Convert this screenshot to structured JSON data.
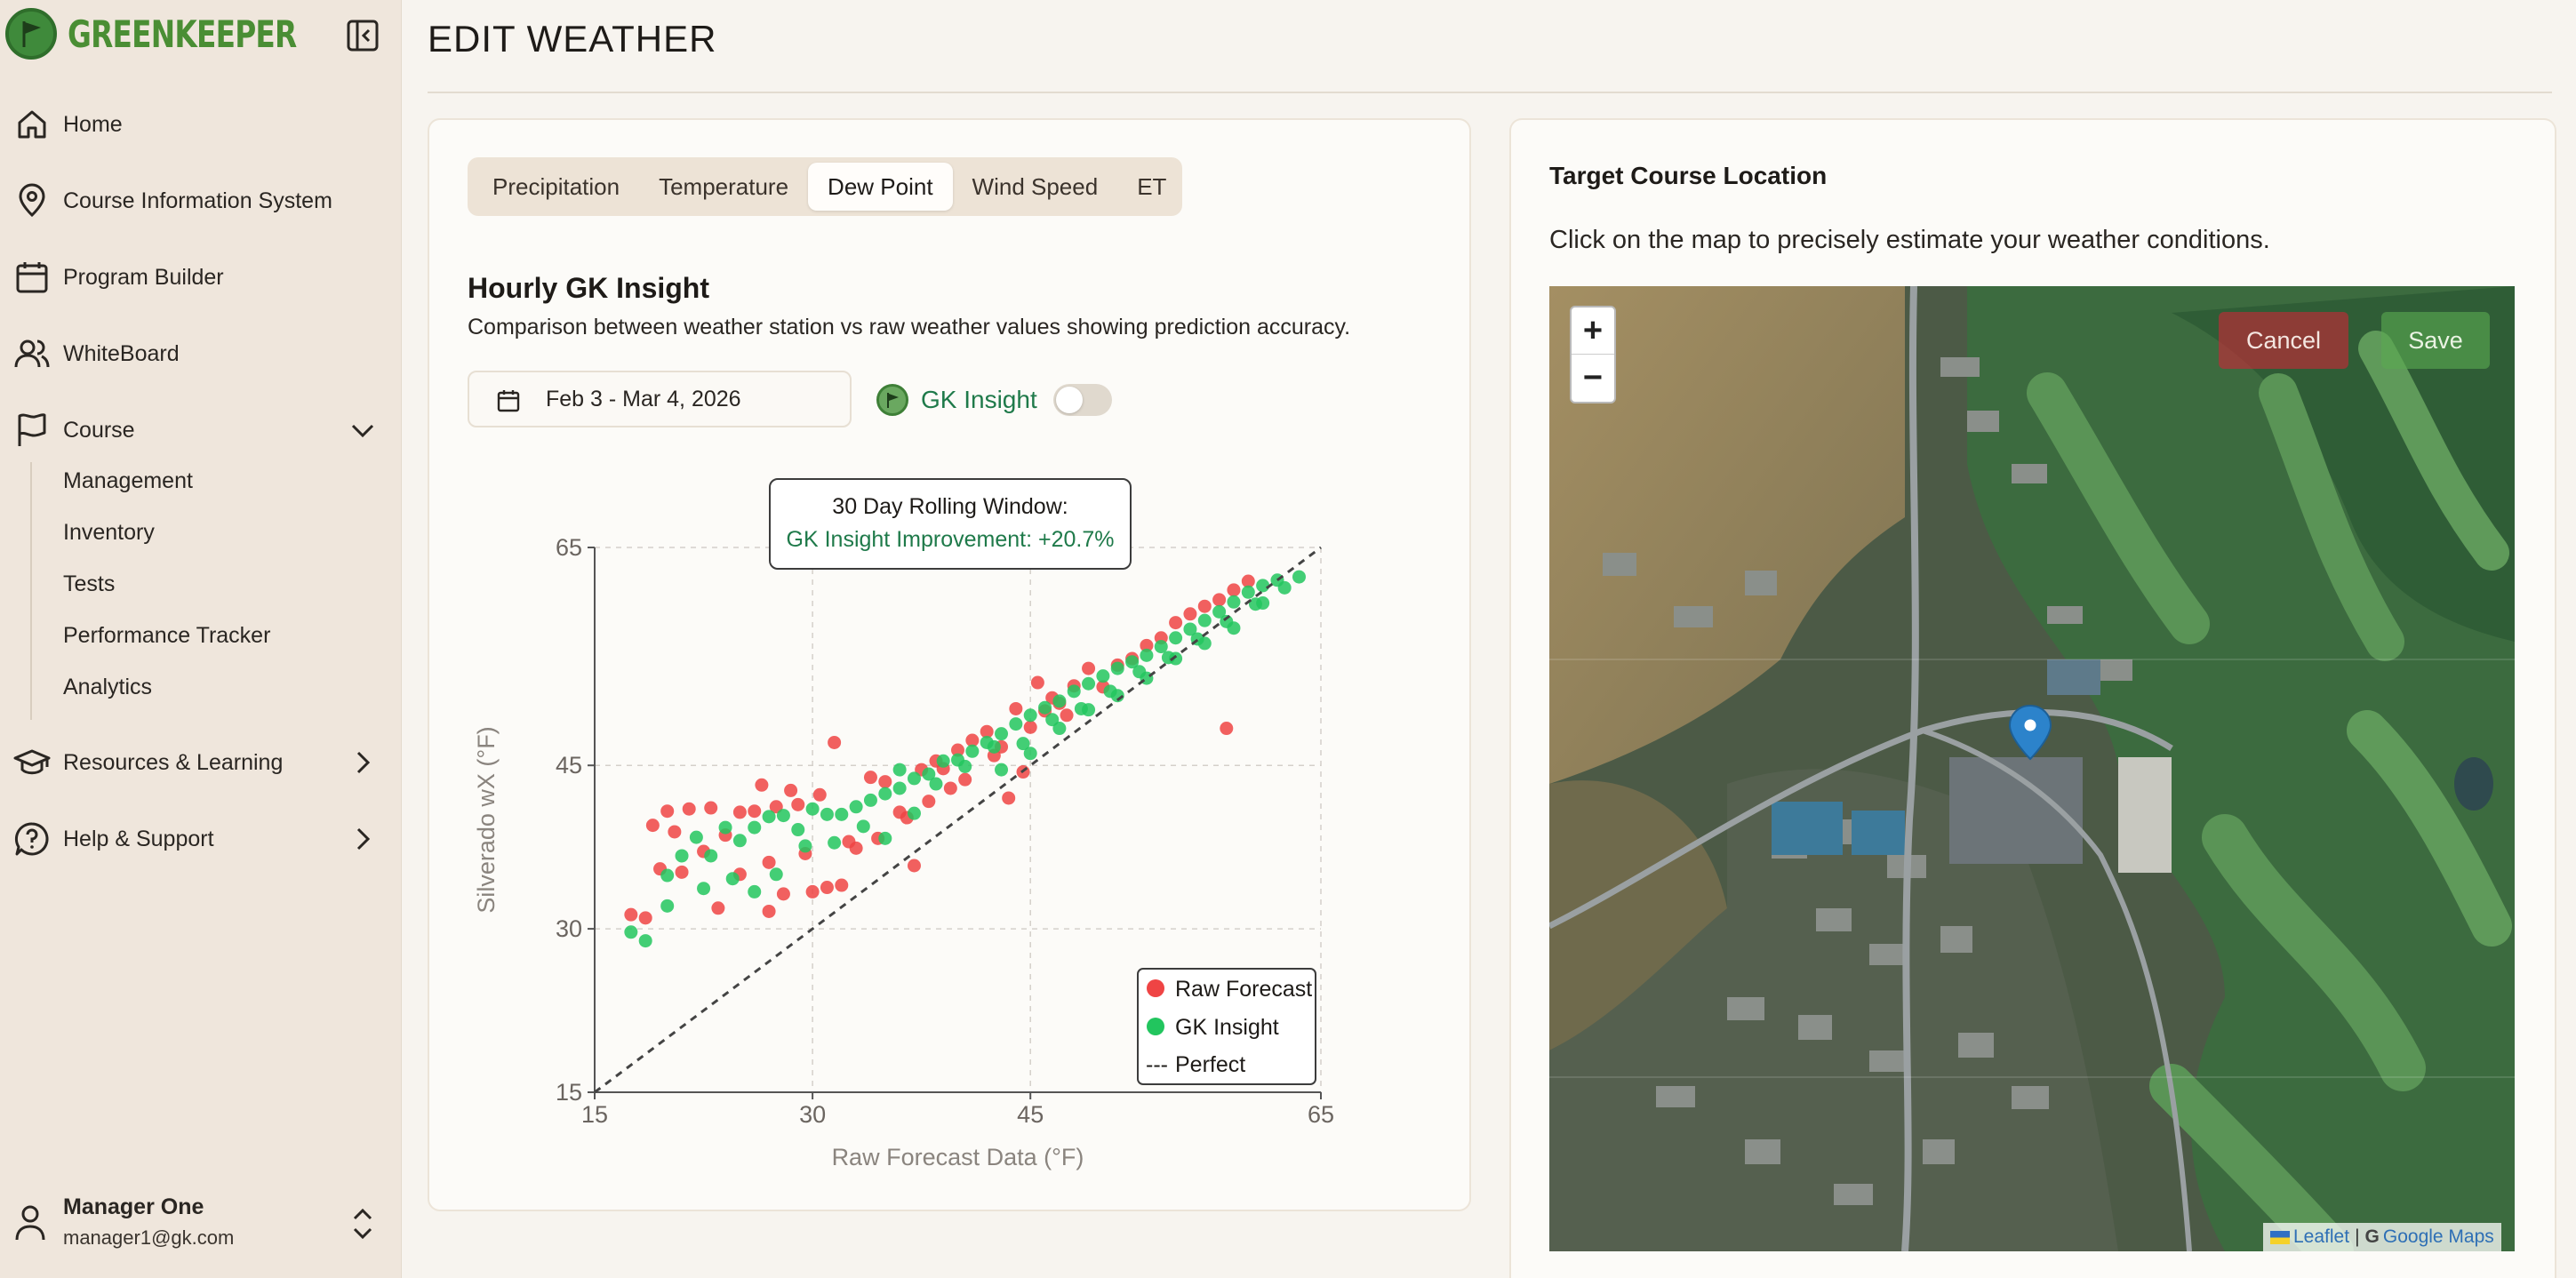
{
  "brand": {
    "name": "GREENKEEPER"
  },
  "sidebar": {
    "items": [
      {
        "label": "Home",
        "icon": "home-icon"
      },
      {
        "label": "Course Information System",
        "icon": "map-pin-icon"
      },
      {
        "label": "Program Builder",
        "icon": "calendar-icon"
      },
      {
        "label": "WhiteBoard",
        "icon": "users-icon"
      },
      {
        "label": "Course",
        "icon": "flag-icon",
        "expanded": true
      },
      {
        "label": "Resources & Learning",
        "icon": "graduation-cap-icon"
      },
      {
        "label": "Help & Support",
        "icon": "help-circle-icon"
      }
    ],
    "course_sub": [
      "Management",
      "Inventory",
      "Tests",
      "Performance Tracker",
      "Analytics"
    ],
    "user": {
      "name": "Manager One",
      "email": "manager1@gk.com"
    }
  },
  "header": {
    "title": "EDIT WEATHER"
  },
  "tabs": [
    {
      "label": "Precipitation",
      "active": false
    },
    {
      "label": "Temperature",
      "active": false
    },
    {
      "label": "Dew Point",
      "active": true
    },
    {
      "label": "Wind Speed",
      "active": false
    },
    {
      "label": "ET",
      "active": false
    }
  ],
  "insight": {
    "title": "Hourly GK Insight",
    "description": "Comparison between weather station vs raw weather values showing prediction accuracy.",
    "date_range": "Feb 3 - Mar 4, 2026",
    "toggle_label": "GK Insight",
    "toggle_on": false
  },
  "tooltip": {
    "line1": "30 Day Rolling Window:",
    "line2": "GK Insight Improvement: +20.7%"
  },
  "chart_data": {
    "type": "scatter",
    "title": "",
    "xlabel": "Raw Forecast Data (°F)",
    "ylabel": "Silverado wX (°F)",
    "xlim": [
      15,
      65
    ],
    "ylim": [
      15,
      65
    ],
    "xticks": [
      "15",
      "30",
      "45",
      "65"
    ],
    "yticks": [
      "15",
      "30",
      "45",
      "65"
    ],
    "tick_values": [
      15,
      30,
      45,
      65
    ],
    "grid": true,
    "legend_position": "bottom-right",
    "colors": {
      "raw": "#ef4444",
      "gk": "#22c55e",
      "perfect": "#444444"
    },
    "series": [
      {
        "name": "Raw Forecast",
        "points": [
          [
            17.5,
            31.3
          ],
          [
            18.5,
            31.0
          ],
          [
            19.0,
            39.5
          ],
          [
            20.5,
            38.9
          ],
          [
            19.5,
            35.5
          ],
          [
            20.0,
            40.8
          ],
          [
            21.5,
            41.0
          ],
          [
            23,
            41.1
          ],
          [
            25,
            40.7
          ],
          [
            26,
            40.8
          ],
          [
            27.5,
            41.2
          ],
          [
            29,
            41.4
          ],
          [
            30.5,
            42.3
          ],
          [
            26.5,
            43.2
          ],
          [
            28.5,
            42.7
          ],
          [
            31.5,
            47.1
          ],
          [
            24,
            38.6
          ],
          [
            22.5,
            37.1
          ],
          [
            21,
            35.2
          ],
          [
            25,
            35.0
          ],
          [
            27,
            36.1
          ],
          [
            28,
            33.2
          ],
          [
            30,
            33.4
          ],
          [
            32,
            34.0
          ],
          [
            31,
            33.8
          ],
          [
            33,
            37.4
          ],
          [
            34.5,
            38.3
          ],
          [
            36,
            40.7
          ],
          [
            38,
            41.7
          ],
          [
            35,
            43.5
          ],
          [
            37.5,
            44.6
          ],
          [
            39,
            44.7
          ],
          [
            40,
            46.4
          ],
          [
            41,
            47.3
          ],
          [
            42,
            48.1
          ],
          [
            43,
            46.7
          ],
          [
            44,
            50.2
          ],
          [
            45,
            48.5
          ],
          [
            46,
            50.0
          ],
          [
            45.5,
            52.6
          ],
          [
            46.5,
            51.2
          ],
          [
            47,
            50.7
          ],
          [
            48,
            52.3
          ],
          [
            49,
            53.9
          ],
          [
            50,
            52.2
          ],
          [
            51,
            54.2
          ],
          [
            52,
            54.8
          ],
          [
            53,
            56.0
          ],
          [
            54,
            56.7
          ],
          [
            55,
            58.1
          ],
          [
            56,
            58.9
          ],
          [
            57,
            59.6
          ],
          [
            58,
            60.2
          ],
          [
            59,
            61.1
          ],
          [
            60,
            61.9
          ],
          [
            58.5,
            48.4
          ],
          [
            43.5,
            42.0
          ],
          [
            44.5,
            44.4
          ],
          [
            40.5,
            43.7
          ],
          [
            36.5,
            40.2
          ],
          [
            27,
            31.6
          ],
          [
            23.5,
            31.9
          ],
          [
            29.5,
            36.9
          ],
          [
            34,
            43.9
          ],
          [
            38.5,
            45.4
          ],
          [
            47.5,
            49.6
          ],
          [
            42.5,
            45.9
          ],
          [
            37,
            35.8
          ],
          [
            32.5,
            38.0
          ],
          [
            39.5,
            42.9
          ]
        ]
      },
      {
        "name": "GK Insight",
        "points": [
          [
            17.5,
            29.7
          ],
          [
            18.5,
            28.9
          ],
          [
            20,
            34.9
          ],
          [
            21,
            36.7
          ],
          [
            22,
            38.4
          ],
          [
            23,
            36.7
          ],
          [
            24,
            39.3
          ],
          [
            25,
            38.1
          ],
          [
            26,
            39.3
          ],
          [
            27,
            40.3
          ],
          [
            28,
            40.4
          ],
          [
            29,
            39.1
          ],
          [
            30,
            41.0
          ],
          [
            31,
            40.5
          ],
          [
            32,
            40.5
          ],
          [
            33,
            41.2
          ],
          [
            34,
            41.8
          ],
          [
            35,
            42.4
          ],
          [
            36,
            42.9
          ],
          [
            37,
            43.8
          ],
          [
            38,
            44.2
          ],
          [
            39,
            45.4
          ],
          [
            40,
            45.5
          ],
          [
            41,
            46.3
          ],
          [
            42,
            47.1
          ],
          [
            43,
            47.9
          ],
          [
            44,
            48.8
          ],
          [
            45,
            49.6
          ],
          [
            46,
            50.3
          ],
          [
            47,
            50.9
          ],
          [
            48,
            51.8
          ],
          [
            49,
            52.5
          ],
          [
            50,
            53.2
          ],
          [
            51,
            53.9
          ],
          [
            52,
            54.5
          ],
          [
            53,
            55.1
          ],
          [
            54,
            55.9
          ],
          [
            55,
            56.7
          ],
          [
            56,
            57.5
          ],
          [
            57,
            58.3
          ],
          [
            58,
            59.1
          ],
          [
            59,
            60.0
          ],
          [
            60,
            60.9
          ],
          [
            61,
            61.5
          ],
          [
            62,
            62.0
          ],
          [
            63.5,
            62.3
          ],
          [
            20,
            32.1
          ],
          [
            22.5,
            33.7
          ],
          [
            24.5,
            34.6
          ],
          [
            26,
            33.4
          ],
          [
            27.5,
            35.0
          ],
          [
            29.5,
            37.6
          ],
          [
            31.5,
            37.9
          ],
          [
            33.5,
            39.4
          ],
          [
            36,
            44.6
          ],
          [
            38.5,
            43.3
          ],
          [
            40.5,
            44.9
          ],
          [
            42.5,
            46.7
          ],
          [
            44.5,
            47.0
          ],
          [
            46.5,
            49.2
          ],
          [
            48.5,
            50.2
          ],
          [
            50.5,
            51.8
          ],
          [
            52.5,
            53.6
          ],
          [
            54.5,
            54.9
          ],
          [
            56.5,
            56.6
          ],
          [
            58.5,
            58.2
          ],
          [
            60.5,
            59.8
          ],
          [
            62.5,
            61.3
          ],
          [
            35,
            38.3
          ],
          [
            37,
            40.6
          ],
          [
            43,
            44.6
          ],
          [
            45,
            46.1
          ],
          [
            47,
            48.4
          ],
          [
            49,
            50.1
          ],
          [
            51,
            51.4
          ],
          [
            53,
            53.0
          ],
          [
            55,
            54.8
          ],
          [
            57,
            56.2
          ],
          [
            59,
            57.6
          ],
          [
            61,
            59.9
          ]
        ]
      },
      {
        "name": "Perfect",
        "line": [
          [
            15,
            15
          ],
          [
            65,
            65
          ]
        ]
      }
    ]
  },
  "location": {
    "title": "Target Course Location",
    "description": "Click on the map to precisely estimate your weather conditions.",
    "cancel_label": "Cancel",
    "save_label": "Save",
    "zoom_in": "+",
    "zoom_out": "−",
    "attribution_leaflet": "Leaflet",
    "attribution_sep": "|",
    "attribution_google": "Google Maps"
  }
}
